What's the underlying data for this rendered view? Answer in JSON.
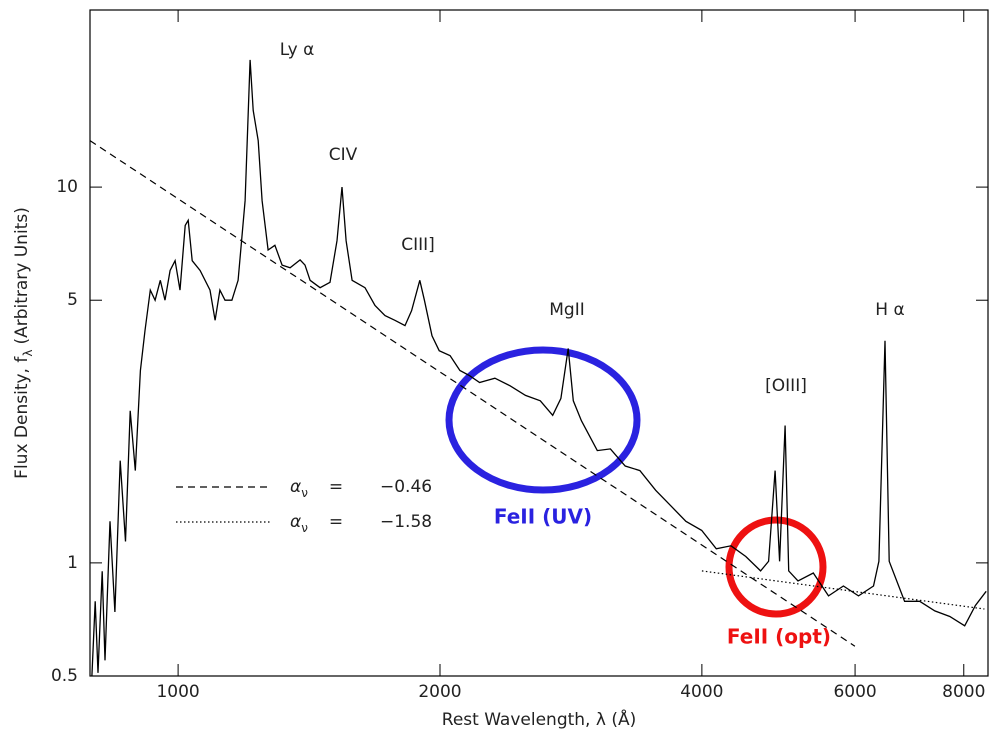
{
  "chart_data": {
    "type": "line",
    "xlabel": {
      "text": "Rest Wavelength, λ (Å)"
    },
    "ylabel": {
      "text": "Flux Density, f",
      "subscript": "λ",
      "after": "(Arbitrary Units)"
    },
    "xlog": true,
    "ylog": true,
    "xlim": [
      792,
      8530
    ],
    "ylim": [
      0.5,
      29.6
    ],
    "xticks": [
      1000,
      2000,
      4000,
      6000,
      8000
    ],
    "yticks": [
      0.5,
      1,
      5,
      10
    ],
    "series": [
      {
        "name": "spectrum",
        "color": "#000000",
        "style": "solid",
        "x": [
          796,
          803,
          809,
          818,
          824,
          835,
          846,
          858,
          870,
          881,
          893,
          905,
          916,
          929,
          941,
          954,
          966,
          979,
          992,
          1005,
          1019,
          1027,
          1038,
          1060,
          1088,
          1103,
          1117,
          1132,
          1153,
          1172,
          1194,
          1210,
          1220,
          1236,
          1249,
          1269,
          1292,
          1317,
          1345,
          1381,
          1399,
          1418,
          1456,
          1495,
          1523,
          1543,
          1560,
          1585,
          1640,
          1684,
          1729,
          1775,
          1823,
          1855,
          1896,
          1919,
          1958,
          1996,
          2054,
          2108,
          2162,
          2221,
          2313,
          2408,
          2508,
          2608,
          2695,
          2754,
          2808,
          2846,
          2908,
          3033,
          3140,
          3265,
          3395,
          3540,
          3683,
          3834,
          3998,
          4156,
          4321,
          4493,
          4672,
          4773,
          4856,
          4913,
          4986,
          5034,
          5159,
          5372,
          5593,
          5818,
          6055,
          6300,
          6390,
          6494,
          6567,
          6840,
          7120,
          7410,
          7710,
          8020,
          8250,
          8490
        ],
        "values": [
          0.5,
          0.79,
          0.51,
          0.95,
          0.55,
          1.29,
          0.74,
          1.87,
          1.14,
          2.54,
          1.76,
          3.25,
          4.15,
          5.32,
          5.0,
          5.65,
          5.0,
          6.0,
          6.37,
          5.32,
          7.91,
          8.16,
          6.37,
          6.0,
          5.32,
          4.42,
          5.32,
          5.0,
          5.0,
          5.65,
          9.2,
          21.8,
          16.0,
          13.3,
          9.2,
          6.8,
          7.0,
          6.2,
          6.1,
          6.4,
          6.2,
          5.65,
          5.4,
          5.58,
          7.2,
          10,
          7.2,
          5.65,
          5.4,
          4.84,
          4.55,
          4.42,
          4.28,
          4.69,
          5.65,
          5.0,
          4.02,
          3.67,
          3.56,
          3.25,
          3.15,
          3.02,
          3.1,
          2.96,
          2.79,
          2.7,
          2.47,
          2.74,
          3.72,
          2.7,
          2.39,
          1.99,
          2.01,
          1.81,
          1.76,
          1.56,
          1.42,
          1.29,
          1.22,
          1.09,
          1.11,
          1.04,
          0.952,
          1.01,
          1.76,
          1.01,
          2.32,
          0.952,
          0.895,
          0.94,
          0.817,
          0.868,
          0.817,
          0.868,
          1.01,
          3.9,
          1.01,
          0.79,
          0.79,
          0.745,
          0.72,
          0.68,
          0.77,
          0.84
        ]
      },
      {
        "legend": {
          "symbol": "α",
          "subscript": "ν",
          "equals": "=",
          "value": "−0.46"
        },
        "color": "#000000",
        "style": "dashed",
        "x": [
          792,
          5998
        ],
        "values": [
          13.3,
          0.6
        ]
      },
      {
        "legend": {
          "symbol": "α",
          "subscript": "ν",
          "equals": "=",
          "value": "−1.58"
        },
        "color": "#000000",
        "style": "dotted",
        "x": [
          4000,
          8450
        ],
        "values": [
          0.952,
          0.754
        ]
      }
    ],
    "annotations": {
      "lya": "Ly α",
      "civ": "CIV",
      "ciii": "CIII]",
      "mgii": "MgII",
      "oiii": "[OIII]",
      "ha": "H α",
      "feii_uv": "FeII (UV)",
      "feii_opt": "FeII (opt)"
    }
  }
}
